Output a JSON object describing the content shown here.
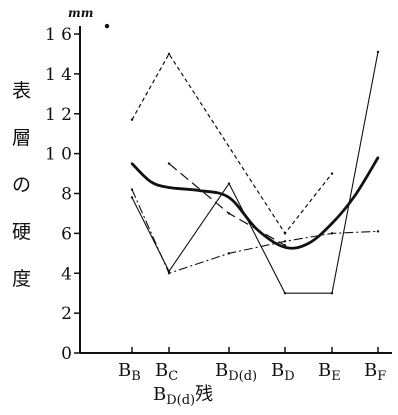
{
  "chart_data": {
    "type": "line",
    "ylabel": "表層の硬度",
    "y_unit": "mm",
    "xlabel": "BD(d)残",
    "ylim": [
      0,
      16
    ],
    "yticks": [
      0,
      2,
      4,
      6,
      8,
      10,
      12,
      14,
      16
    ],
    "ytick_labels": [
      "0",
      "2",
      "4",
      "6",
      "8",
      "1 0",
      "1 2",
      "1 4",
      "1 6"
    ],
    "categories": [
      "BB",
      "BC",
      "BD(d)",
      "BD",
      "BE",
      "BF"
    ],
    "category_labels": [
      {
        "main": "B",
        "sub": "B"
      },
      {
        "main": "B",
        "sub": "C"
      },
      {
        "main": "B",
        "sub": "D(d)"
      },
      {
        "main": "B",
        "sub": "D"
      },
      {
        "main": "B",
        "sub": "E"
      },
      {
        "main": "B",
        "sub": "F"
      }
    ],
    "xlabel_parts": {
      "main": "B",
      "sub": "D(d)",
      "suffix": "残"
    },
    "series": [
      {
        "style": "dashed",
        "points": [
          [
            0,
            11.7
          ],
          [
            1,
            15.0
          ],
          [
            3,
            6.0
          ],
          [
            4,
            9.0
          ]
        ]
      },
      {
        "style": "thin-solid",
        "points": [
          [
            0,
            7.8
          ],
          [
            1,
            4.1
          ],
          [
            2,
            8.5
          ],
          [
            3,
            3.0
          ],
          [
            4,
            3.0
          ],
          [
            5,
            15.1
          ]
        ]
      },
      {
        "style": "dash-dot",
        "points": [
          [
            0,
            8.2
          ],
          [
            1,
            4.0
          ],
          [
            2,
            5.0
          ],
          [
            3,
            5.6
          ],
          [
            4,
            6.0
          ],
          [
            5,
            6.1
          ]
        ]
      },
      {
        "style": "long-dash",
        "points": [
          [
            1,
            9.5
          ],
          [
            2,
            7.0
          ],
          [
            3,
            5.4
          ]
        ]
      },
      {
        "style": "thick-curve",
        "points": [
          [
            0,
            9.5
          ],
          [
            0.5,
            8.6
          ],
          [
            1,
            8.3
          ],
          [
            1.5,
            8.15
          ],
          [
            2,
            7.8
          ],
          [
            2.5,
            6.2
          ],
          [
            3,
            5.3
          ],
          [
            3.5,
            5.5
          ],
          [
            4,
            6.5
          ],
          [
            4.5,
            7.9
          ],
          [
            5,
            9.8
          ]
        ]
      }
    ],
    "outlier": {
      "x": -0.3,
      "y": 16.4
    },
    "grid": false
  }
}
